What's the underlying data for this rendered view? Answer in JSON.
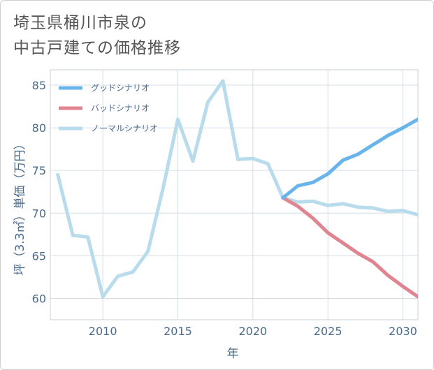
{
  "title": {
    "line1": "埼玉県桶川市泉の",
    "line2": "中古戸建ての価格推移"
  },
  "chart_data": {
    "type": "line",
    "xlabel": "年",
    "ylabel": "坪（3.3㎡）単価（万円）",
    "xlim": [
      2006.5,
      2031
    ],
    "ylim": [
      57.5,
      86.8
    ],
    "x_ticks": [
      2010,
      2015,
      2020,
      2025,
      2030
    ],
    "y_ticks": [
      60,
      65,
      70,
      75,
      80,
      85
    ],
    "x_tick_labels": [
      "2010",
      "2015",
      "2020",
      "2025",
      "2030"
    ],
    "y_tick_labels": [
      "60",
      "65",
      "70",
      "75",
      "80",
      "85"
    ],
    "legend_position": "top-left",
    "series": [
      {
        "name": "グッドシナリオ",
        "color": "#6ab4ec",
        "x": [
          2022,
          2023,
          2024,
          2025,
          2026,
          2027,
          2028,
          2029,
          2030,
          2031
        ],
        "values": [
          71.8,
          73.2,
          73.6,
          74.6,
          76.2,
          76.9,
          78.0,
          79.1,
          80.0,
          81.0
        ]
      },
      {
        "name": "バッドシナリオ",
        "color": "#e0848f",
        "x": [
          2022,
          2023,
          2024,
          2025,
          2026,
          2027,
          2028,
          2029,
          2030,
          2031
        ],
        "values": [
          71.8,
          70.8,
          69.4,
          67.7,
          66.5,
          65.3,
          64.3,
          62.7,
          61.4,
          60.2
        ]
      },
      {
        "name": "ノーマルシナリオ",
        "color": "#b8dcec",
        "x": [
          2007,
          2008,
          2009,
          2010,
          2011,
          2012,
          2013,
          2014,
          2015,
          2016,
          2017,
          2018,
          2019,
          2020,
          2021,
          2022,
          2023,
          2024,
          2025,
          2026,
          2027,
          2028,
          2029,
          2030,
          2031
        ],
        "values": [
          74.5,
          67.4,
          67.2,
          60.2,
          62.6,
          63.1,
          65.5,
          72.8,
          81.0,
          76.1,
          83.0,
          85.5,
          76.3,
          76.4,
          75.8,
          71.8,
          71.3,
          71.4,
          70.9,
          71.1,
          70.7,
          70.6,
          70.2,
          70.3,
          69.8
        ]
      }
    ]
  }
}
